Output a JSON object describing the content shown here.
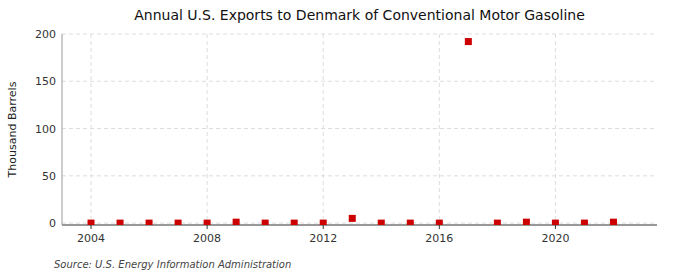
{
  "chart_data": {
    "type": "scatter",
    "title": "Annual U.S. Exports to Denmark of Conventional Motor Gasoline",
    "ylabel": "Thousand Barrels",
    "source": "Source: U.S. Energy Information Administration",
    "x": [
      2004,
      2005,
      2006,
      2007,
      2008,
      2009,
      2010,
      2011,
      2012,
      2013,
      2014,
      2015,
      2016,
      2017,
      2018,
      2019,
      2020,
      2021,
      2022
    ],
    "values": [
      0,
      0,
      0,
      0,
      0,
      1,
      0,
      0,
      0,
      5,
      0,
      0,
      0,
      192,
      0,
      1,
      0,
      0,
      1
    ],
    "color": "#cc0000",
    "marker": "square",
    "xlim": [
      2003.0,
      2023.5
    ],
    "ylim": [
      -2,
      200
    ],
    "xticks": [
      2004,
      2008,
      2012,
      2016,
      2020
    ],
    "yticks": [
      0,
      50,
      100,
      150,
      200
    ],
    "grid": true
  }
}
